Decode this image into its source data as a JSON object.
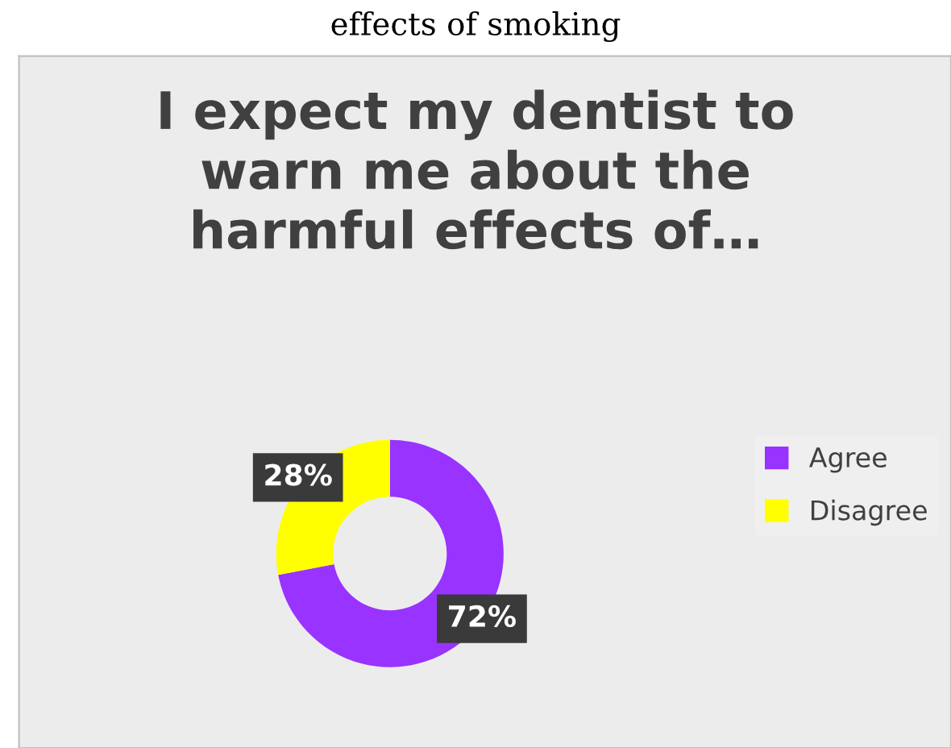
{
  "chart_data": {
    "type": "donut",
    "title": "I expect my dentist to\nwarn me about the\nharmful effects of…",
    "annotations": [
      "effects of smoking"
    ],
    "categories": [
      "Agree",
      "Disagree"
    ],
    "values": [
      72,
      28
    ],
    "colors": [
      "#9933ff",
      "#ffff00"
    ],
    "value_labels": [
      "72%",
      "28%"
    ],
    "legend": "right"
  }
}
